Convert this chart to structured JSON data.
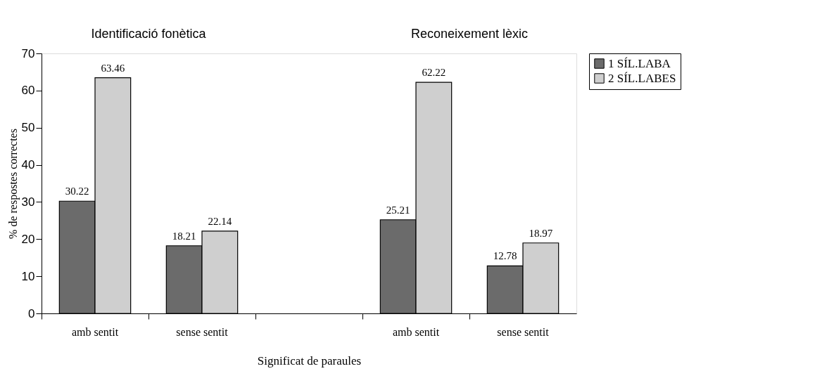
{
  "chart_data": {
    "type": "bar",
    "categories": [
      "amb sentit",
      "sense sentit",
      null,
      "amb sentit",
      "sense sentit"
    ],
    "series": [
      {
        "name": "1 SÍL.LABA",
        "color": "#6b6b6b",
        "values": [
          30.22,
          18.21,
          null,
          25.21,
          12.78
        ]
      },
      {
        "name": "2 SÍL.LABES",
        "color": "#cfcfcf",
        "values": [
          63.46,
          22.14,
          null,
          62.22,
          18.97
        ]
      }
    ],
    "xlabel": "Significat de paraules",
    "ylabel": "% de respostes correctes",
    "ylim": [
      0,
      70
    ],
    "yticks": [
      0,
      10,
      20,
      30,
      40,
      50,
      60,
      70
    ],
    "annotations": [
      "Identificació fonètica",
      "Reconeixement lèxic"
    ],
    "data_labels": true,
    "legend": "right",
    "grid": false
  }
}
